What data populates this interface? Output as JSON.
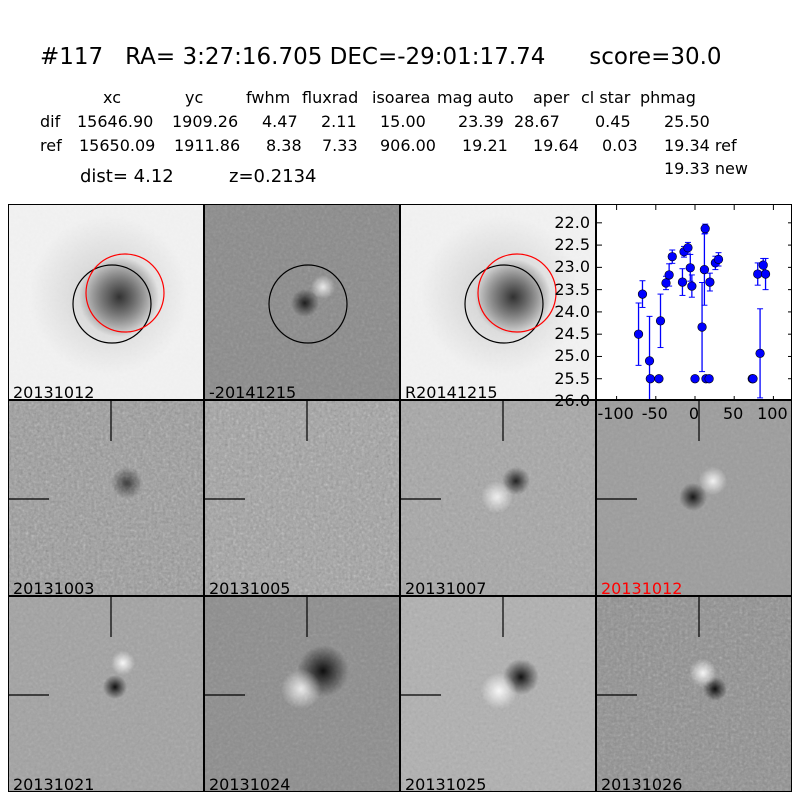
{
  "title": "#117   RA= 3:27:16.705 DEC=-29:01:17.74      score=30.0",
  "table": {
    "headers": [
      "xc",
      "yc",
      "fwhm",
      "fluxrad",
      "isoarea",
      "mag auto",
      "aper",
      "cl star",
      "phmag"
    ],
    "rows": [
      {
        "label": "dif",
        "values": [
          "15646.90",
          "1909.26",
          "4.47",
          "2.11",
          "15.00",
          "23.39",
          "28.67",
          "0.45",
          "25.50"
        ]
      },
      {
        "label": "ref",
        "values": [
          "15650.09",
          "1911.86",
          "8.38",
          "7.33",
          "906.00",
          "19.21",
          "19.64",
          "0.03",
          "19.34 ref"
        ]
      }
    ],
    "extra": "19.33 new",
    "dist": "dist=  4.12",
    "z": "z=0.2134"
  },
  "stamps": [
    {
      "label": "20131012",
      "label_color": "#000000"
    },
    {
      "label": "-20141215",
      "label_color": "#000000"
    },
    {
      "label": "R20141215",
      "label_color": "#000000"
    },
    {
      "label": "20131003",
      "label_color": "#000000"
    },
    {
      "label": "20131005",
      "label_color": "#000000"
    },
    {
      "label": "20131007",
      "label_color": "#000000"
    },
    {
      "label": "20131012",
      "label_color": "#ff0000"
    },
    {
      "label": "20131021",
      "label_color": "#000000"
    },
    {
      "label": "20131024",
      "label_color": "#000000"
    },
    {
      "label": "20131025",
      "label_color": "#000000"
    },
    {
      "label": "20131026",
      "label_color": "#000000"
    }
  ],
  "circle_colors": {
    "black": "#000000",
    "red": "#ff0000"
  },
  "chart_data": {
    "type": "scatter",
    "title": "",
    "xlabel": "",
    "ylabel": "",
    "xlim": [
      -125,
      125
    ],
    "ylim": [
      26.0,
      21.6
    ],
    "y_inverted": true,
    "xticks": [
      "-100",
      "-50",
      "0",
      "50",
      "100"
    ],
    "yticks": [
      "22.0",
      "22.5",
      "23.0",
      "23.5",
      "24.0",
      "24.5",
      "25.0",
      "25.5",
      "26.0"
    ],
    "marker_color": "#0000ff",
    "points": [
      {
        "x": -72,
        "y": 24.5,
        "err": 0.7
      },
      {
        "x": -67,
        "y": 23.6,
        "err": 0.3
      },
      {
        "x": -58,
        "y": 25.1,
        "err": 1.0
      },
      {
        "x": -57,
        "y": 25.5,
        "err": 0.05
      },
      {
        "x": -46,
        "y": 25.5,
        "err": 0.05
      },
      {
        "x": -44,
        "y": 24.2,
        "err": 0.6
      },
      {
        "x": -37,
        "y": 23.35,
        "err": 0.15
      },
      {
        "x": -33,
        "y": 23.17,
        "err": 0.25
      },
      {
        "x": -29,
        "y": 22.76,
        "err": 0.15
      },
      {
        "x": -16,
        "y": 23.33,
        "err": 0.3
      },
      {
        "x": -14,
        "y": 22.65,
        "err": 0.12
      },
      {
        "x": -9,
        "y": 22.56,
        "err": 0.12
      },
      {
        "x": -6,
        "y": 23.01,
        "err": 0.3
      },
      {
        "x": -4,
        "y": 23.42,
        "err": 0.25
      },
      {
        "x": 0,
        "y": 25.5,
        "err": 0.05
      },
      {
        "x": 9,
        "y": 24.34,
        "err": 1.0
      },
      {
        "x": 12,
        "y": 23.05,
        "err": 0.8
      },
      {
        "x": 13,
        "y": 22.13,
        "err": 0.1
      },
      {
        "x": 14,
        "y": 25.5,
        "err": 0.05
      },
      {
        "x": 18,
        "y": 25.5,
        "err": 0.05
      },
      {
        "x": 19,
        "y": 23.33,
        "err": 0.2
      },
      {
        "x": 26,
        "y": 22.9,
        "err": 0.15
      },
      {
        "x": 30,
        "y": 22.82,
        "err": 0.15
      },
      {
        "x": 73,
        "y": 25.5,
        "err": 0.05
      },
      {
        "x": 74,
        "y": 25.5,
        "err": 0.05
      },
      {
        "x": 80,
        "y": 23.15,
        "err": 0.25
      },
      {
        "x": 83,
        "y": 24.93,
        "err": 1.0
      },
      {
        "x": 87,
        "y": 22.95,
        "err": 0.15
      },
      {
        "x": 90,
        "y": 23.15,
        "err": 0.35
      }
    ]
  }
}
